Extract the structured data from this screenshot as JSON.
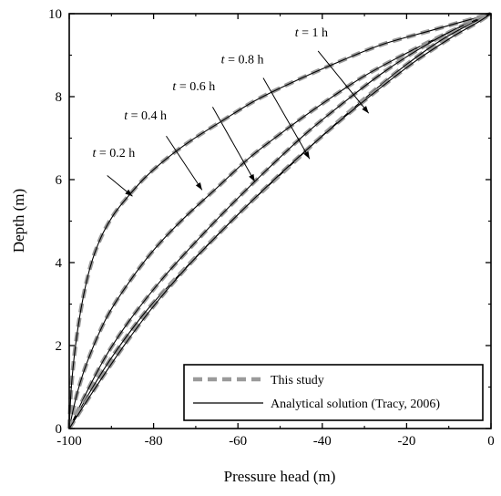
{
  "chart_data": {
    "type": "line",
    "xlabel": "Pressure head (m)",
    "ylabel": "Depth (m)",
    "xlim": [
      -100,
      0
    ],
    "ylim": [
      0,
      10
    ],
    "xticks": [
      -100,
      -80,
      -60,
      -40,
      -20,
      0
    ],
    "yticks": [
      0,
      2,
      4,
      6,
      8,
      10
    ],
    "grid": false,
    "legend_position": "bottom-right",
    "legend": [
      {
        "label": "This study",
        "style": "dashed",
        "color": "#9a9a9a"
      },
      {
        "label": "Analytical solution (Tracy, 2006)",
        "style": "solid",
        "color": "#000000"
      }
    ],
    "annotations": [
      {
        "time": "0.2",
        "label_italic": "t",
        "label_rest": " = 0.2 h",
        "label_at": [
          -94.5,
          6.55
        ],
        "arrow_from": [
          -91,
          6.1
        ],
        "arrow_to": [
          -85,
          5.6
        ]
      },
      {
        "time": "0.4",
        "label_italic": "t",
        "label_rest": " = 0.4 h",
        "label_at": [
          -87,
          7.45
        ],
        "arrow_from": [
          -77,
          7.05
        ],
        "arrow_to": [
          -68.5,
          5.75
        ]
      },
      {
        "time": "0.6",
        "label_italic": "t",
        "label_rest": " = 0.6 h",
        "label_at": [
          -75.5,
          8.15
        ],
        "arrow_from": [
          -66,
          7.75
        ],
        "arrow_to": [
          -56,
          5.95
        ]
      },
      {
        "time": "0.8",
        "label_italic": "t",
        "label_rest": " = 0.8 h",
        "label_at": [
          -64,
          8.8
        ],
        "arrow_from": [
          -54,
          8.45
        ],
        "arrow_to": [
          -43,
          6.5
        ]
      },
      {
        "time": "1",
        "label_italic": "t",
        "label_rest": " = 1 h",
        "label_at": [
          -46.5,
          9.45
        ],
        "arrow_from": [
          -41,
          9.1
        ],
        "arrow_to": [
          -29,
          7.6
        ]
      }
    ],
    "series": [
      {
        "name": "t = 0.2 h",
        "x": [
          -100,
          -99.5,
          -98.5,
          -97,
          -95,
          -92.5,
          -89.5,
          -86,
          -82,
          -77,
          -71,
          -64,
          -56,
          -47,
          -37,
          -26,
          -14,
          0
        ],
        "y": [
          0,
          1.0,
          2.0,
          3.0,
          3.9,
          4.6,
          5.15,
          5.6,
          6.05,
          6.5,
          6.95,
          7.4,
          7.9,
          8.35,
          8.8,
          9.25,
          9.6,
          10
        ]
      },
      {
        "name": "t = 0.4 h",
        "x": [
          -100,
          -98,
          -95,
          -91,
          -86,
          -80,
          -73,
          -65,
          -57,
          -48,
          -39,
          -30,
          -20,
          -10,
          0
        ],
        "y": [
          0,
          0.9,
          1.8,
          2.7,
          3.5,
          4.3,
          5.05,
          5.8,
          6.55,
          7.25,
          7.9,
          8.5,
          9.05,
          9.55,
          10
        ]
      },
      {
        "name": "t = 0.6 h",
        "x": [
          -100,
          -96,
          -91,
          -85,
          -78,
          -70,
          -62,
          -53,
          -44,
          -35,
          -26,
          -17,
          -8,
          0
        ],
        "y": [
          0,
          0.85,
          1.8,
          2.7,
          3.6,
          4.5,
          5.35,
          6.25,
          7.1,
          7.85,
          8.55,
          9.15,
          9.65,
          10
        ]
      },
      {
        "name": "t = 0.8 h",
        "x": [
          -100,
          -95,
          -89,
          -82,
          -74,
          -66,
          -57,
          -48,
          -39,
          -30,
          -21,
          -12,
          -4,
          0
        ],
        "y": [
          0,
          0.9,
          1.85,
          2.8,
          3.7,
          4.55,
          5.45,
          6.3,
          7.15,
          7.95,
          8.7,
          9.35,
          9.8,
          10
        ]
      },
      {
        "name": "t = 1 h",
        "x": [
          -100,
          -94,
          -87,
          -80,
          -72,
          -63,
          -54,
          -45,
          -36,
          -27,
          -18,
          -9,
          -3,
          0
        ],
        "y": [
          0,
          0.95,
          2.0,
          2.95,
          3.9,
          4.85,
          5.75,
          6.6,
          7.4,
          8.15,
          8.85,
          9.45,
          9.8,
          10
        ]
      }
    ]
  }
}
